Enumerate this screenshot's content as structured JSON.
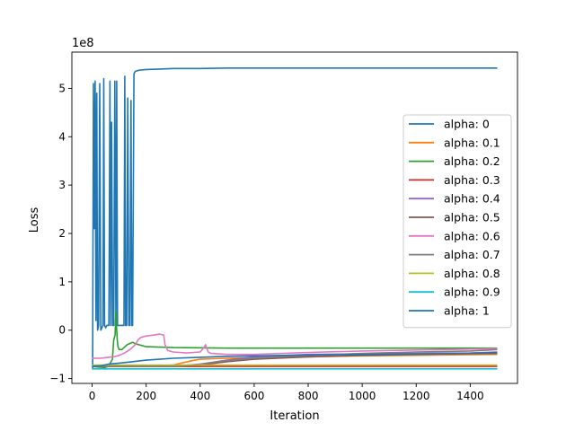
{
  "chart_data": {
    "type": "line",
    "title": "",
    "xlabel": "Iteration",
    "ylabel": "Loss",
    "y_offset_label": "1e8",
    "xlim": [
      -75,
      1575
    ],
    "ylim": [
      -1.1,
      5.75
    ],
    "x_ticks": [
      0,
      200,
      400,
      600,
      800,
      1000,
      1200,
      1400
    ],
    "y_ticks": [
      -1,
      0,
      1,
      2,
      3,
      4,
      5
    ],
    "grid": false,
    "legend_position": "center-right",
    "series": [
      {
        "name": "alpha: 0",
        "color": "#1f77b4",
        "x": [
          0,
          2,
          5,
          8,
          11,
          14,
          17,
          20,
          24,
          28,
          32,
          36,
          40,
          43,
          46,
          50,
          54,
          58,
          62,
          66,
          69,
          72,
          76,
          80,
          84,
          88,
          91,
          94,
          98,
          102,
          106,
          110,
          114,
          118,
          121,
          124,
          128,
          132,
          136,
          140,
          144,
          147,
          150,
          155,
          160,
          170,
          180,
          200,
          250,
          300,
          400,
          500,
          700,
          1000,
          1500
        ],
        "y": [
          -0.8,
          -0.8,
          5.1,
          2.1,
          5.15,
          0.2,
          4.9,
          0.0,
          0.1,
          5.1,
          0.0,
          0.05,
          0.1,
          5.2,
          0.1,
          0.05,
          0.1,
          0.1,
          0.1,
          5.15,
          0.1,
          4.3,
          0.1,
          0.1,
          5.15,
          0.1,
          5.15,
          0.1,
          0.1,
          0.1,
          0.1,
          0.1,
          0.1,
          0.1,
          5.25,
          0.1,
          0.1,
          4.8,
          0.1,
          0.1,
          4.75,
          0.1,
          0.1,
          5.3,
          5.35,
          5.37,
          5.38,
          5.39,
          5.4,
          5.41,
          5.41,
          5.42,
          5.42,
          5.42,
          5.42
        ]
      },
      {
        "name": "alpha: 0.1",
        "color": "#ff7f0e",
        "x": [
          0,
          100,
          200,
          300,
          330,
          370,
          400,
          450,
          500,
          700,
          1000,
          1500
        ],
        "y": [
          -0.75,
          -0.75,
          -0.75,
          -0.72,
          -0.68,
          -0.63,
          -0.6,
          -0.59,
          -0.58,
          -0.56,
          -0.53,
          -0.5
        ]
      },
      {
        "name": "alpha: 0.2",
        "color": "#2ca02c",
        "x": [
          0,
          40,
          60,
          75,
          80,
          85,
          88,
          90,
          93,
          96,
          100,
          110,
          130,
          150,
          160,
          200,
          300,
          500,
          1000,
          1500
        ],
        "y": [
          -0.8,
          -0.78,
          -0.75,
          -0.6,
          -0.2,
          -0.1,
          0.4,
          0.1,
          -0.2,
          -0.35,
          -0.4,
          -0.4,
          -0.3,
          -0.25,
          -0.28,
          -0.34,
          -0.36,
          -0.37,
          -0.37,
          -0.37
        ]
      },
      {
        "name": "alpha: 0.3",
        "color": "#d62728",
        "x": [
          0,
          200,
          400,
          600,
          800,
          1000,
          1200,
          1400,
          1500
        ],
        "y": [
          -0.75,
          -0.75,
          -0.75,
          -0.75,
          -0.75,
          -0.75,
          -0.75,
          -0.75,
          -0.75
        ]
      },
      {
        "name": "alpha: 0.4",
        "color": "#9467bd",
        "x": [
          0,
          300,
          400,
          500,
          600,
          800,
          1000,
          1200,
          1400,
          1500
        ],
        "y": [
          -0.75,
          -0.75,
          -0.7,
          -0.62,
          -0.55,
          -0.5,
          -0.49,
          -0.48,
          -0.47,
          -0.45
        ]
      },
      {
        "name": "alpha: 0.5",
        "color": "#8c564b",
        "x": [
          0,
          300,
          400,
          500,
          600,
          800,
          1000,
          1200,
          1400,
          1500
        ],
        "y": [
          -0.75,
          -0.75,
          -0.72,
          -0.65,
          -0.6,
          -0.55,
          -0.52,
          -0.5,
          -0.48,
          -0.46
        ]
      },
      {
        "name": "alpha: 0.6",
        "color": "#e377c2",
        "x": [
          0,
          30,
          60,
          80,
          100,
          120,
          140,
          160,
          170,
          180,
          200,
          230,
          250,
          265,
          270,
          280,
          300,
          350,
          400,
          415,
          420,
          425,
          430,
          440,
          500,
          600,
          800,
          1000,
          1200,
          1400,
          1500
        ],
        "y": [
          -0.58,
          -0.58,
          -0.56,
          -0.55,
          -0.52,
          -0.47,
          -0.4,
          -0.3,
          -0.2,
          -0.15,
          -0.12,
          -0.1,
          -0.08,
          -0.1,
          -0.3,
          -0.42,
          -0.45,
          -0.47,
          -0.45,
          -0.35,
          -0.3,
          -0.38,
          -0.45,
          -0.48,
          -0.5,
          -0.5,
          -0.46,
          -0.43,
          -0.41,
          -0.39,
          -0.38
        ]
      },
      {
        "name": "alpha: 0.7",
        "color": "#7f7f7f",
        "x": [
          0,
          300,
          400,
          500,
          600,
          800,
          1000,
          1200,
          1400,
          1500
        ],
        "y": [
          -0.75,
          -0.75,
          -0.7,
          -0.63,
          -0.58,
          -0.52,
          -0.48,
          -0.45,
          -0.43,
          -0.4
        ]
      },
      {
        "name": "alpha: 0.8",
        "color": "#bcbd22",
        "x": [
          0,
          200,
          400,
          600,
          800,
          1000,
          1200,
          1400,
          1500
        ],
        "y": [
          -0.72,
          -0.72,
          -0.72,
          -0.72,
          -0.72,
          -0.72,
          -0.72,
          -0.72,
          -0.72
        ]
      },
      {
        "name": "alpha: 0.9",
        "color": "#17becf",
        "x": [
          0,
          200,
          400,
          600,
          800,
          1000,
          1200,
          1400,
          1500
        ],
        "y": [
          -0.8,
          -0.8,
          -0.8,
          -0.8,
          -0.8,
          -0.8,
          -0.8,
          -0.8,
          -0.8
        ]
      },
      {
        "name": "alpha: 1",
        "color": "#1f77b4",
        "x": [
          0,
          30,
          60,
          100,
          150,
          200,
          250,
          300,
          400,
          500,
          700,
          1000,
          1500
        ],
        "y": [
          -0.75,
          -0.74,
          -0.7,
          -0.68,
          -0.65,
          -0.62,
          -0.6,
          -0.58,
          -0.56,
          -0.54,
          -0.52,
          -0.5,
          -0.48
        ]
      }
    ]
  }
}
